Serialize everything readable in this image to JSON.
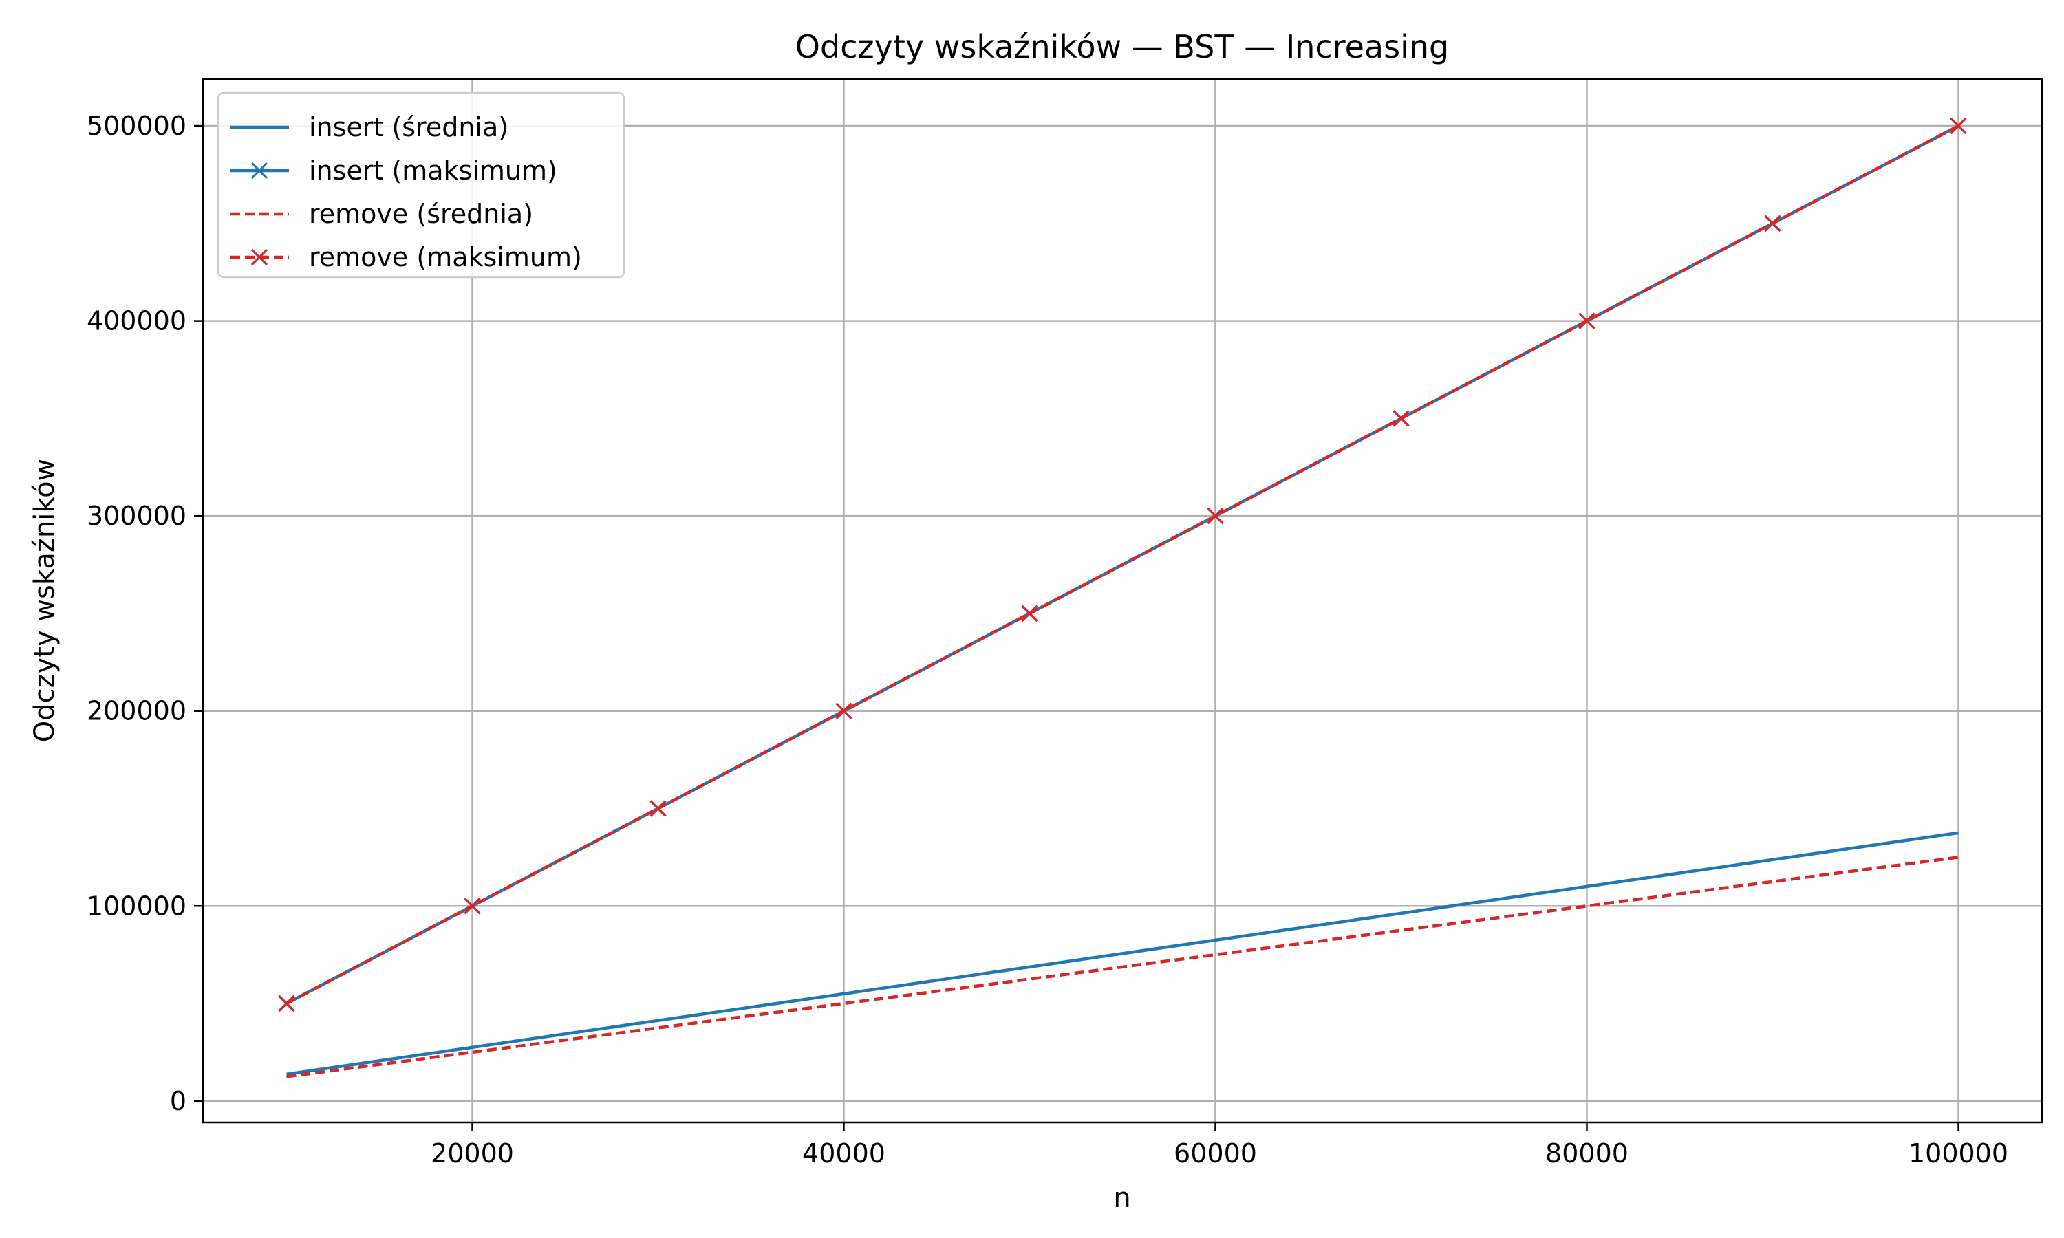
{
  "chart_data": {
    "type": "line",
    "title": "Odczyty wskaźników — BST — Increasing",
    "xlabel": "n",
    "ylabel": "Odczyty wskaźników",
    "xlim": [
      5500,
      104500
    ],
    "ylim": [
      -11000,
      524000
    ],
    "x_ticks": [
      20000,
      40000,
      60000,
      80000,
      100000
    ],
    "y_ticks": [
      0,
      100000,
      200000,
      300000,
      400000,
      500000
    ],
    "grid": true,
    "legend_position": "top-left",
    "x": [
      10000,
      20000,
      30000,
      40000,
      50000,
      60000,
      70000,
      80000,
      90000,
      100000
    ],
    "series": [
      {
        "name": "insert (średnia)",
        "color": "#1f77b4",
        "dash": "solid",
        "marker": "none",
        "values": [
          13750,
          27500,
          41250,
          55000,
          68750,
          82500,
          96250,
          110000,
          123750,
          137500
        ]
      },
      {
        "name": "insert (maksimum)",
        "color": "#1f77b4",
        "dash": "solid",
        "marker": "x",
        "values": [
          50000,
          100000,
          150000,
          200000,
          250000,
          300000,
          350000,
          400000,
          450000,
          500000
        ]
      },
      {
        "name": "remove (średnia)",
        "color": "#d62728",
        "dash": "dashed",
        "marker": "none",
        "values": [
          12500,
          25000,
          37500,
          50000,
          62500,
          75000,
          87500,
          100000,
          112500,
          125000
        ]
      },
      {
        "name": "remove (maksimum)",
        "color": "#d62728",
        "dash": "dashed",
        "marker": "x",
        "values": [
          50000,
          100000,
          150000,
          200000,
          250000,
          300000,
          350000,
          400000,
          450000,
          500000
        ]
      }
    ]
  }
}
